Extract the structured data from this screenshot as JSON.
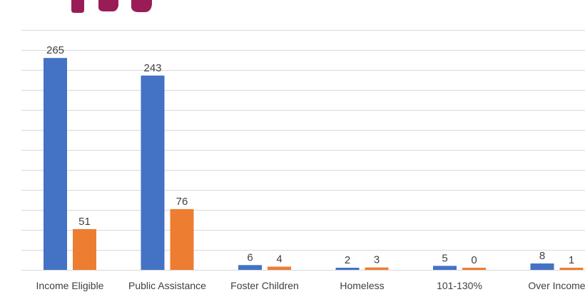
{
  "colors": {
    "series_1": "#4472c4",
    "series_2": "#ed7d31",
    "gridline": "#d9d9d9",
    "title_fragment": "#9a1c57"
  },
  "chart_data": {
    "type": "bar",
    "categories": [
      "Income Eligible",
      "Public Assistance",
      "Foster Children",
      "Homeless",
      "101-130%",
      "Over Income"
    ],
    "series": [
      {
        "values": [
          265,
          243,
          6,
          2,
          5,
          8
        ]
      },
      {
        "values": [
          51,
          76,
          4,
          3,
          0,
          1
        ]
      }
    ],
    "ylim": [
      0,
      300
    ],
    "grid_step": 25,
    "gridlines": true,
    "legend": "none",
    "data_labels": true
  }
}
